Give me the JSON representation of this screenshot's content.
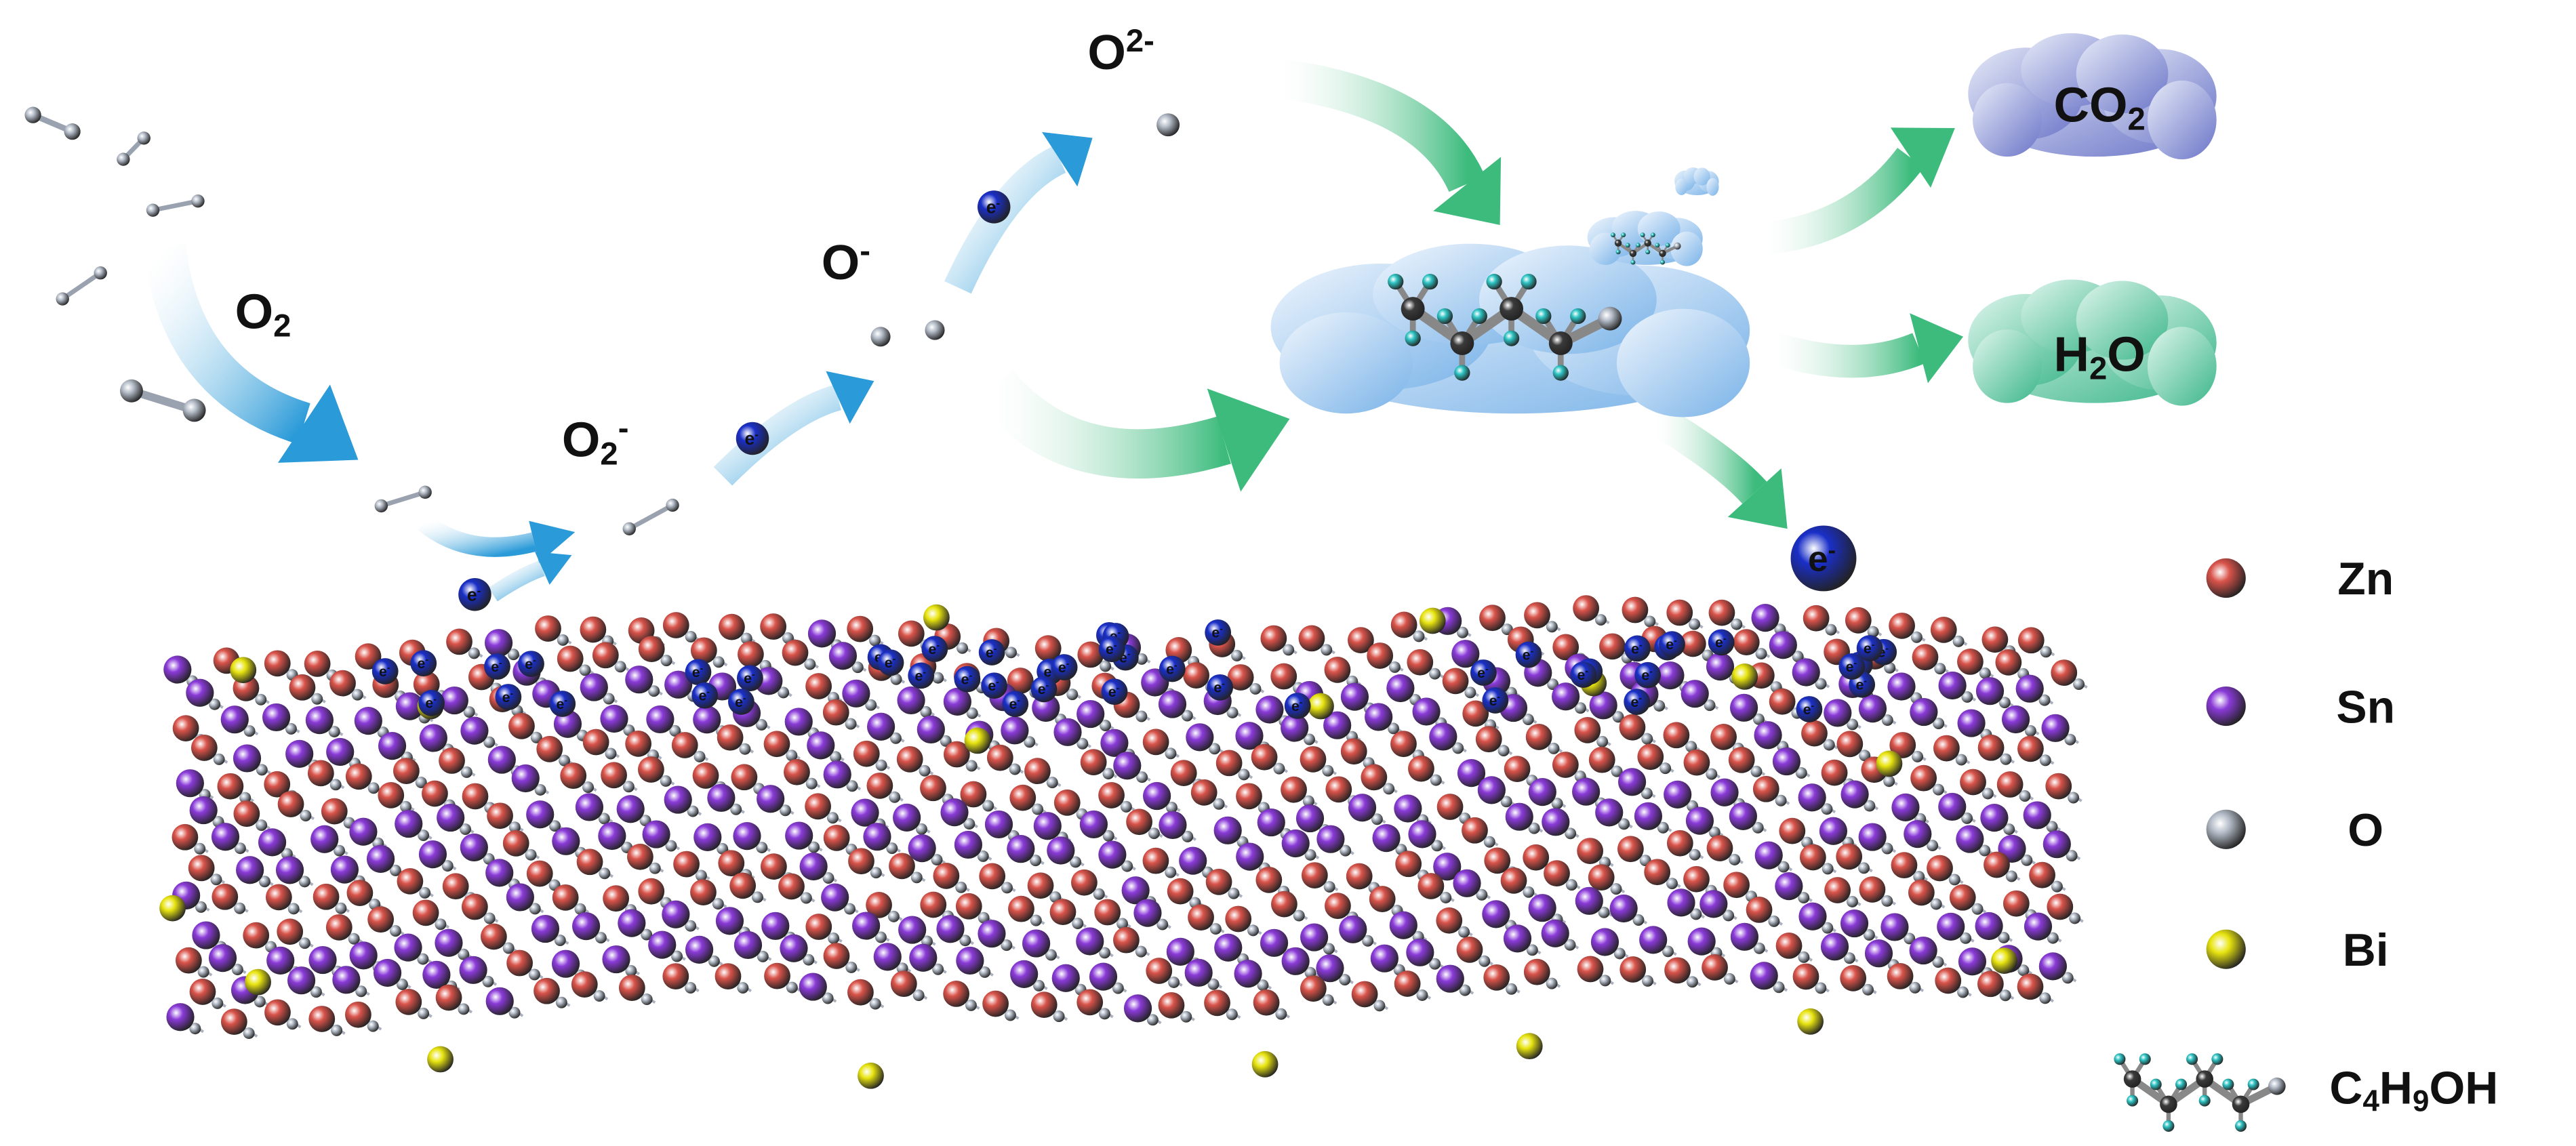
{
  "species": {
    "o2": [
      {
        "text": "O"
      },
      {
        "text": "2",
        "script": "sub"
      }
    ],
    "o2_minus": [
      {
        "text": "O"
      },
      {
        "text": "2",
        "script": "sub"
      },
      {
        "text": "-",
        "script": "sup"
      }
    ],
    "o_minus": [
      {
        "text": "O"
      },
      {
        "text": "-",
        "script": "sup"
      }
    ],
    "o_2minus": [
      {
        "text": "O"
      },
      {
        "text": "2-",
        "script": "sup"
      }
    ],
    "electron": [
      {
        "text": "e"
      },
      {
        "text": "-",
        "script": "sup"
      }
    ]
  },
  "products": {
    "co2": [
      {
        "text": "CO"
      },
      {
        "text": "2",
        "script": "sub"
      }
    ],
    "h2o": [
      {
        "text": "H"
      },
      {
        "text": "2",
        "script": "sub"
      },
      {
        "text": "O"
      }
    ]
  },
  "legend": [
    {
      "label": [
        {
          "text": "Zn"
        }
      ],
      "color": "#d9534a"
    },
    {
      "label": [
        {
          "text": "Sn"
        }
      ],
      "color": "#8a3ad8"
    },
    {
      "label": [
        {
          "text": "O"
        }
      ],
      "color": "#b4bcc8"
    },
    {
      "label": [
        {
          "text": "Bi"
        }
      ],
      "color": "#e8e410"
    },
    {
      "label": [
        {
          "text": "C"
        },
        {
          "text": "4",
          "script": "sub"
        },
        {
          "text": "H"
        },
        {
          "text": "9",
          "script": "sub"
        },
        {
          "text": "OH"
        }
      ]
    }
  ]
}
